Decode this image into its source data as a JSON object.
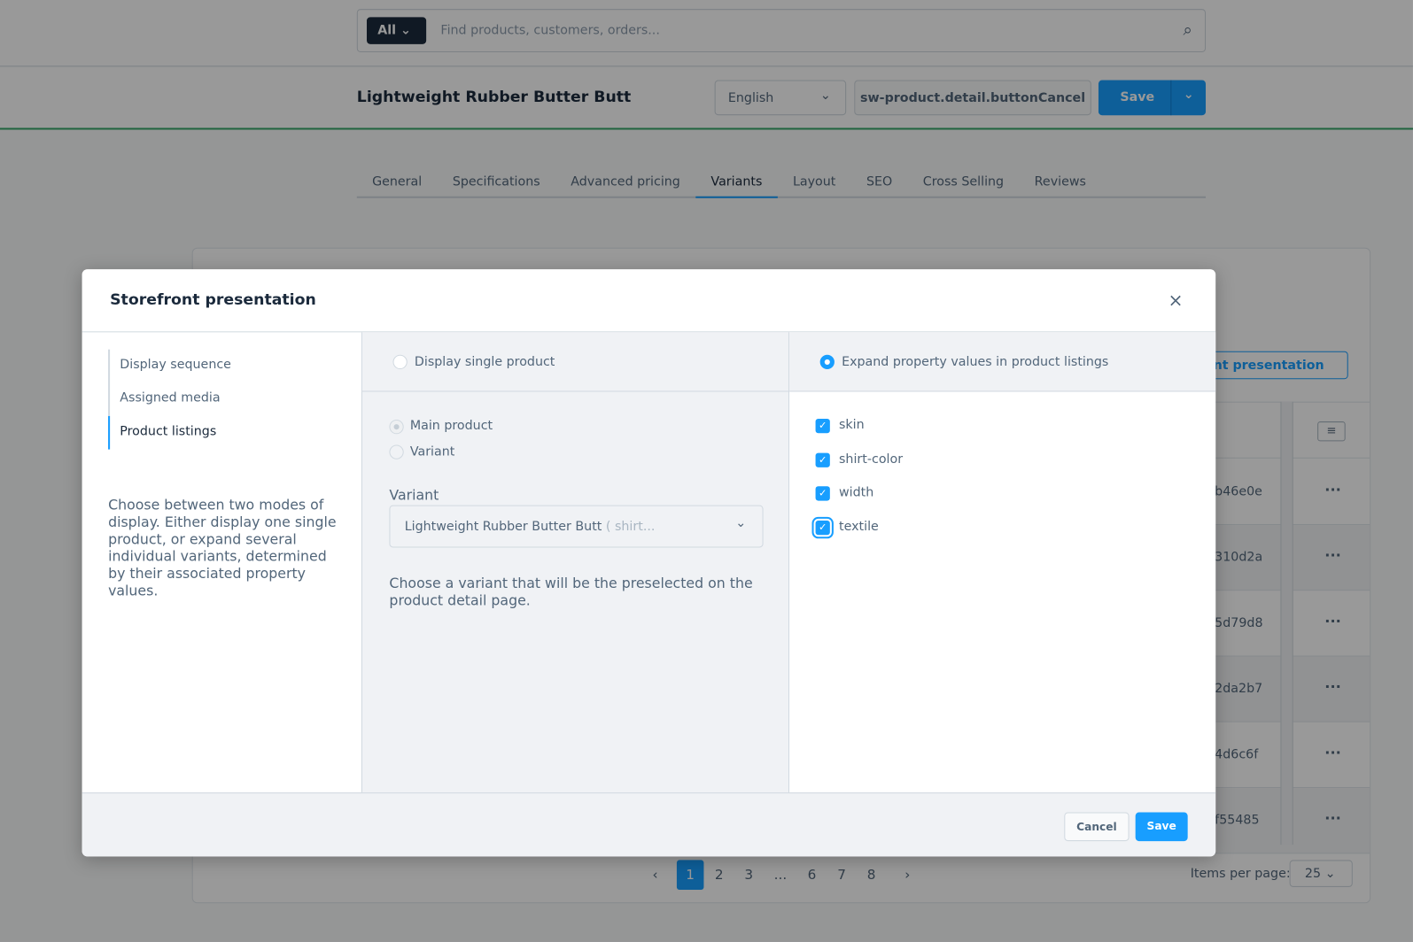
{
  "topbar": {
    "search_scope": "All",
    "search_placeholder": "Find products, customers, orders..."
  },
  "header": {
    "title": "Lightweight Rubber Butter Butt",
    "language": "English",
    "cancel_label": "sw-product.detail.buttonCancel",
    "save_label": "Save"
  },
  "tabs": [
    "General",
    "Specifications",
    "Advanced pricing",
    "Variants",
    "Layout",
    "SEO",
    "Cross Selling",
    "Reviews"
  ],
  "active_tab": "Variants",
  "card": {
    "storefront_button": "Storefront presentation",
    "rows": [
      "b46e0e",
      "310d2a",
      "5d79d8",
      "2da2b7",
      "4d6c6f",
      "f55485"
    ],
    "row_action": "···"
  },
  "pagination": {
    "prev": "‹",
    "pages": [
      "1",
      "2",
      "3",
      "...",
      "6",
      "7",
      "8"
    ],
    "next": "›",
    "current": "1",
    "items_per_page_label": "Items per page:",
    "items_per_page": "25"
  },
  "modal": {
    "title": "Storefront presentation",
    "close": "×",
    "nav": [
      "Display sequence",
      "Assigned media",
      "Product listings"
    ],
    "active_nav": "Product listings",
    "description": "Choose between two modes of display. Either display one single product, or expand several individual variants, determined by their associated property values.",
    "option_single": "Display single product",
    "option_expand": "Expand property values in product listings",
    "selected_option": "expand",
    "single_choices": [
      "Main product",
      "Variant"
    ],
    "variant_label": "Variant",
    "variant_value": "Lightweight Rubber Butter Butt",
    "variant_value_suffix": "( shirt...",
    "variant_help": "Choose a variant that will be the preselected on the product detail page.",
    "properties": [
      {
        "name": "skin",
        "checked": true
      },
      {
        "name": "shirt-color",
        "checked": true
      },
      {
        "name": "width",
        "checked": true
      },
      {
        "name": "textile",
        "checked": true
      }
    ],
    "cancel": "Cancel",
    "save": "Save"
  },
  "colors": {
    "accent": "#189eff",
    "dark": "#1b2a3c",
    "header_border": "#37a76a"
  }
}
